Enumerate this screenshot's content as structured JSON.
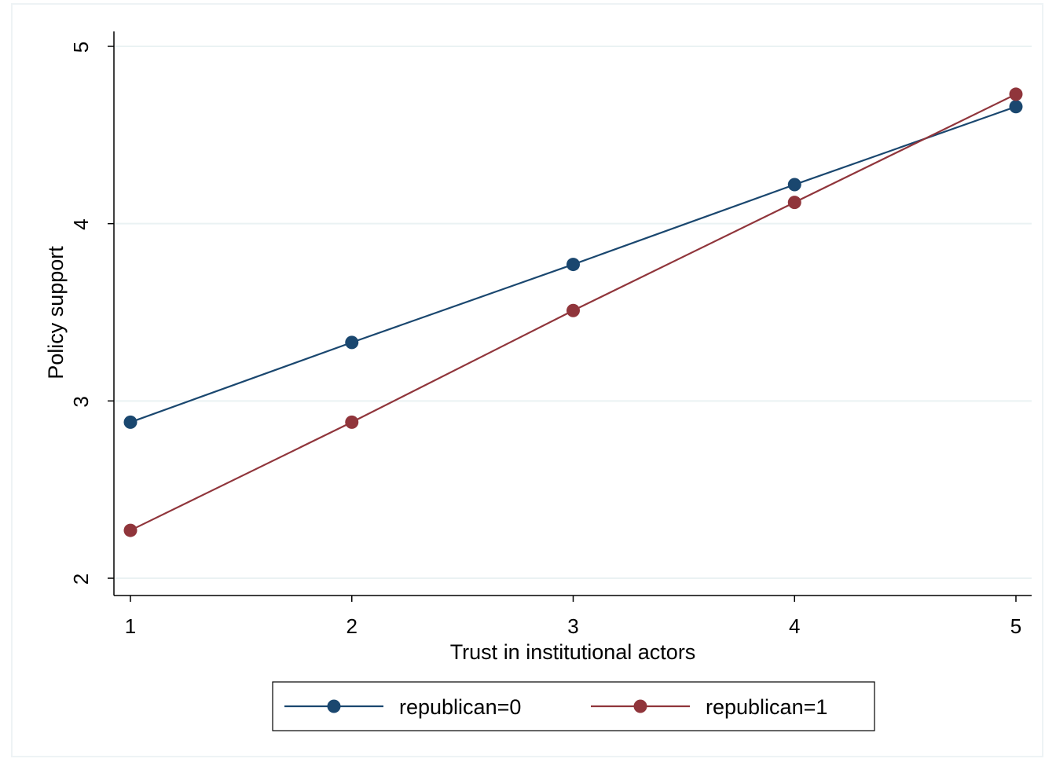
{
  "chart_data": {
    "type": "line",
    "xlabel": "Trust in institutional actors",
    "ylabel": "Policy support",
    "x": [
      1,
      2,
      3,
      4,
      5
    ],
    "xticks": [
      "1",
      "2",
      "3",
      "4",
      "5"
    ],
    "yticks": [
      "2",
      "3",
      "4",
      "5"
    ],
    "xlim": [
      1,
      5
    ],
    "ylim": [
      2,
      5
    ],
    "grid": "horizontal",
    "legend_position": "bottom",
    "series": [
      {
        "name": "republican=0",
        "color": "#1a476f",
        "values": [
          2.88,
          3.33,
          3.77,
          4.22,
          4.66
        ]
      },
      {
        "name": "republican=1",
        "color": "#90353b",
        "values": [
          2.27,
          2.88,
          3.51,
          4.12,
          4.73
        ]
      }
    ]
  }
}
